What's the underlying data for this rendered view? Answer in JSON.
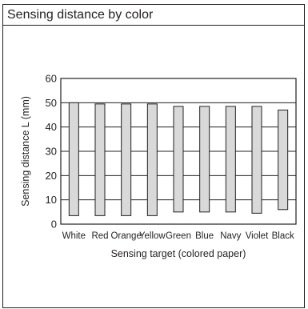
{
  "panel": {
    "title": "Sensing distance by color"
  },
  "chart_data": {
    "type": "bar",
    "subtype": "floating-range",
    "categories": [
      "White",
      "Red",
      "Orange",
      "Yellow",
      "Green",
      "Blue",
      "Navy",
      "Violet",
      "Black"
    ],
    "series": [
      {
        "low": [
          3.5,
          3.5,
          3.5,
          3.5,
          5,
          5,
          5,
          4.5,
          6
        ],
        "high": [
          50,
          49.5,
          49.5,
          49.5,
          48.5,
          48.5,
          48.5,
          48.5,
          47
        ]
      }
    ],
    "xlabel": "Sensing target (colored paper)",
    "ylabel": "Sensing distance L (mm)",
    "ylim": [
      0,
      60
    ],
    "yticks": [
      0,
      10,
      20,
      30,
      40,
      50,
      60
    ],
    "grid": true,
    "bar_fill": "#d9d9d9",
    "line_color": "#231f20"
  }
}
